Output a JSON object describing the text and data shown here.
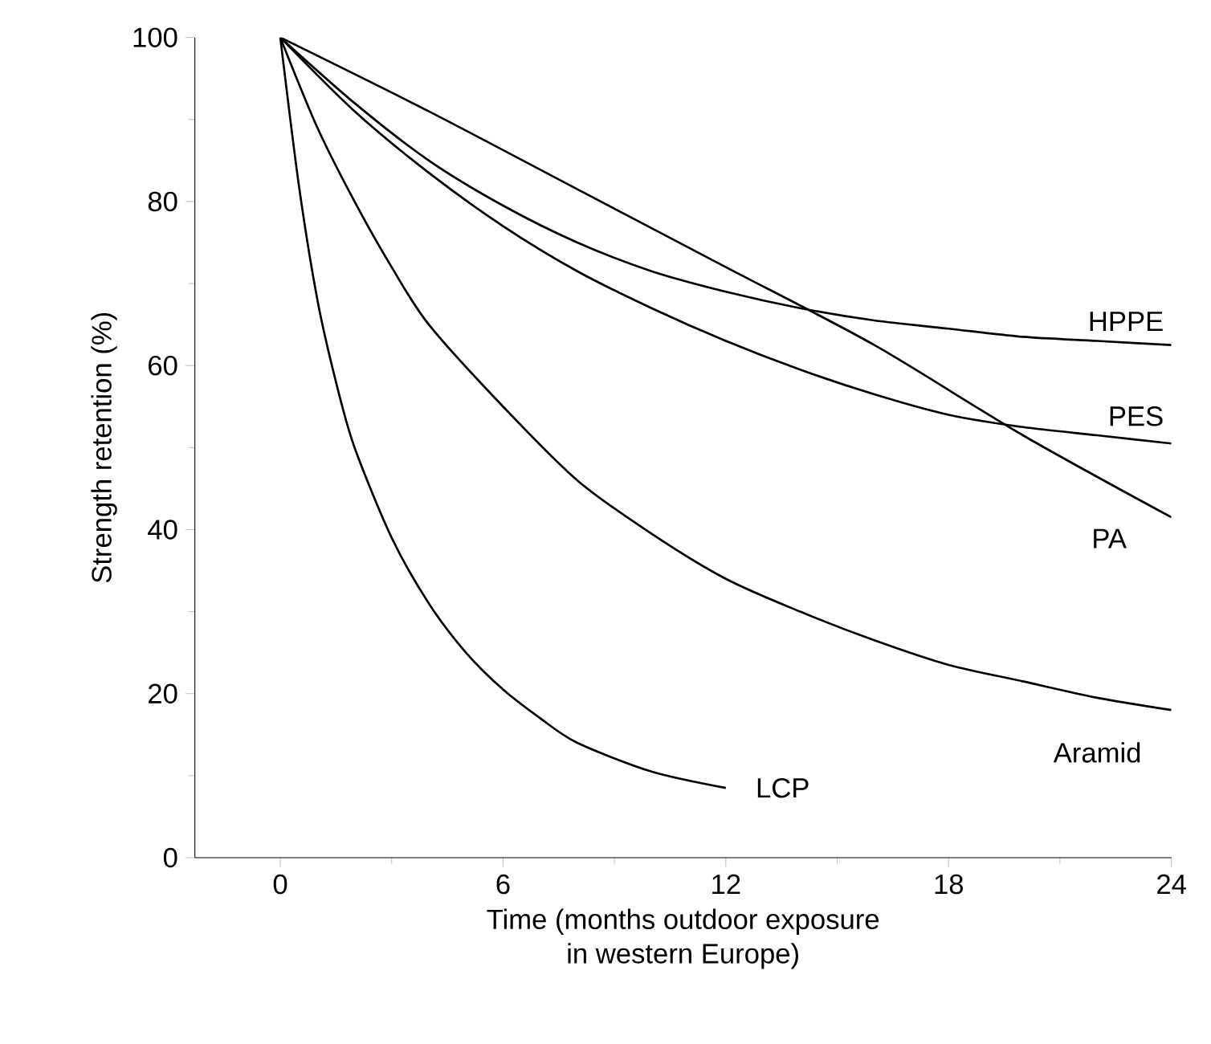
{
  "chart_data": {
    "type": "line",
    "xlabel": "Time (months outdoor exposure\nin western Europe)",
    "ylabel": "Strength retention (%)",
    "xlim": [
      -2.3,
      24
    ],
    "ylim": [
      0,
      100
    ],
    "xticks": [
      0,
      6,
      12,
      18,
      24
    ],
    "yticks": [
      0,
      20,
      40,
      60,
      80,
      100
    ],
    "marker": "none",
    "line_style": "solid",
    "series": [
      {
        "name": "HPPE",
        "color": "#000000",
        "x": [
          0,
          2,
          4,
          6,
          8,
          10,
          12,
          14,
          16,
          18,
          20,
          22,
          24
        ],
        "values": [
          100,
          92,
          85,
          79.5,
          75,
          71.5,
          69,
          67,
          65.5,
          64.5,
          63.5,
          63,
          62.5
        ]
      },
      {
        "name": "PES",
        "color": "#000000",
        "x": [
          0,
          2,
          4,
          6,
          8,
          10,
          12,
          14,
          16,
          18,
          20,
          22,
          24
        ],
        "values": [
          100,
          91,
          83.5,
          77,
          71.5,
          67,
          63,
          59.5,
          56.5,
          54,
          52.5,
          51.5,
          50.5
        ]
      },
      {
        "name": "PA",
        "color": "#000000",
        "x": [
          0,
          4,
          8,
          12,
          16,
          20,
          24
        ],
        "values": [
          100,
          91,
          81.5,
          72,
          62.5,
          51.5,
          41.5
        ]
      },
      {
        "name": "Aramid",
        "color": "#000000",
        "x": [
          0,
          1,
          2,
          3,
          4,
          6,
          8,
          10,
          12,
          14,
          16,
          18,
          20,
          22,
          24
        ],
        "values": [
          100,
          89,
          80,
          72,
          65,
          55,
          46,
          39.5,
          34,
          30,
          26.5,
          23.5,
          21.5,
          19.5,
          18
        ]
      },
      {
        "name": "LCP",
        "color": "#000000",
        "x": [
          0,
          0.5,
          1,
          1.5,
          2,
          3,
          4,
          5,
          6,
          7,
          8,
          10,
          12
        ],
        "values": [
          100,
          82,
          68,
          58,
          50,
          39,
          31,
          25,
          20.5,
          17,
          14,
          10.5,
          8.5
        ]
      }
    ]
  }
}
